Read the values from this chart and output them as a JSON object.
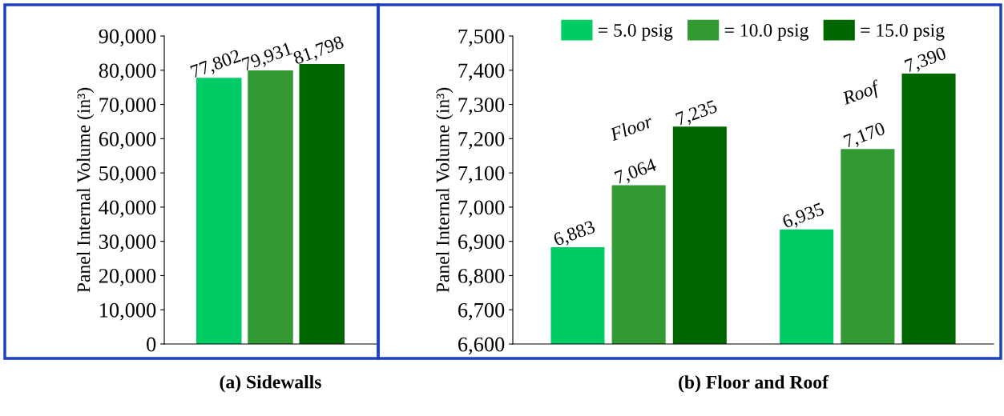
{
  "chart_data": [
    {
      "type": "bar",
      "categories": [
        null
      ],
      "xlabel": "(a) Sidewalls",
      "ylabel": "Panel Internal Volume (in³)",
      "ylim": [
        0,
        90000
      ],
      "yticks": [
        {
          "value": 0,
          "label": "0"
        },
        {
          "value": 10000,
          "label": "10,000"
        },
        {
          "value": 20000,
          "label": "20,000"
        },
        {
          "value": 30000,
          "label": "30,000"
        },
        {
          "value": 40000,
          "label": "40,000"
        },
        {
          "value": 50000,
          "label": "50,000"
        },
        {
          "value": 60000,
          "label": "60,000"
        },
        {
          "value": 70000,
          "label": "70,000"
        },
        {
          "value": 80000,
          "label": "80,000"
        },
        {
          "value": 90000,
          "label": "90,000"
        }
      ],
      "series": [
        {
          "color": "#00cc66",
          "values": [
            77802
          ],
          "value_labels": [
            "77,802"
          ]
        },
        {
          "color": "#339933",
          "values": [
            79931
          ],
          "value_labels": [
            "79,931"
          ]
        },
        {
          "color": "#006600",
          "values": [
            81798
          ],
          "value_labels": [
            "81,798"
          ]
        }
      ],
      "grid": false,
      "legend": false
    },
    {
      "type": "bar",
      "categories": [
        "Floor",
        "Roof"
      ],
      "xlabel": "(b) Floor and Roof",
      "ylabel": "Panel Internal Volume (in³)",
      "ylim": [
        6600,
        7500
      ],
      "yticks": [
        {
          "value": 6600,
          "label": "6,600"
        },
        {
          "value": 6700,
          "label": "6,700"
        },
        {
          "value": 6800,
          "label": "6,800"
        },
        {
          "value": 6900,
          "label": "6,900"
        },
        {
          "value": 7000,
          "label": "7,000"
        },
        {
          "value": 7100,
          "label": "7,100"
        },
        {
          "value": 7200,
          "label": "7,200"
        },
        {
          "value": 7300,
          "label": "7,300"
        },
        {
          "value": 7400,
          "label": "7,400"
        },
        {
          "value": 7500,
          "label": "7,500"
        }
      ],
      "series": [
        {
          "name": "= 5.0 psig",
          "color": "#00cc66",
          "values": [
            6883,
            6935
          ],
          "value_labels": [
            "6,883",
            "6,935"
          ]
        },
        {
          "name": "= 10.0 psig",
          "color": "#339933",
          "values": [
            7064,
            7170
          ],
          "value_labels": [
            "7,064",
            "7,170"
          ]
        },
        {
          "name": "= 15.0 psig",
          "color": "#006600",
          "values": [
            7235,
            7390
          ],
          "value_labels": [
            "7,235",
            "7,390"
          ]
        }
      ],
      "grid": false,
      "legend": "top"
    }
  ]
}
